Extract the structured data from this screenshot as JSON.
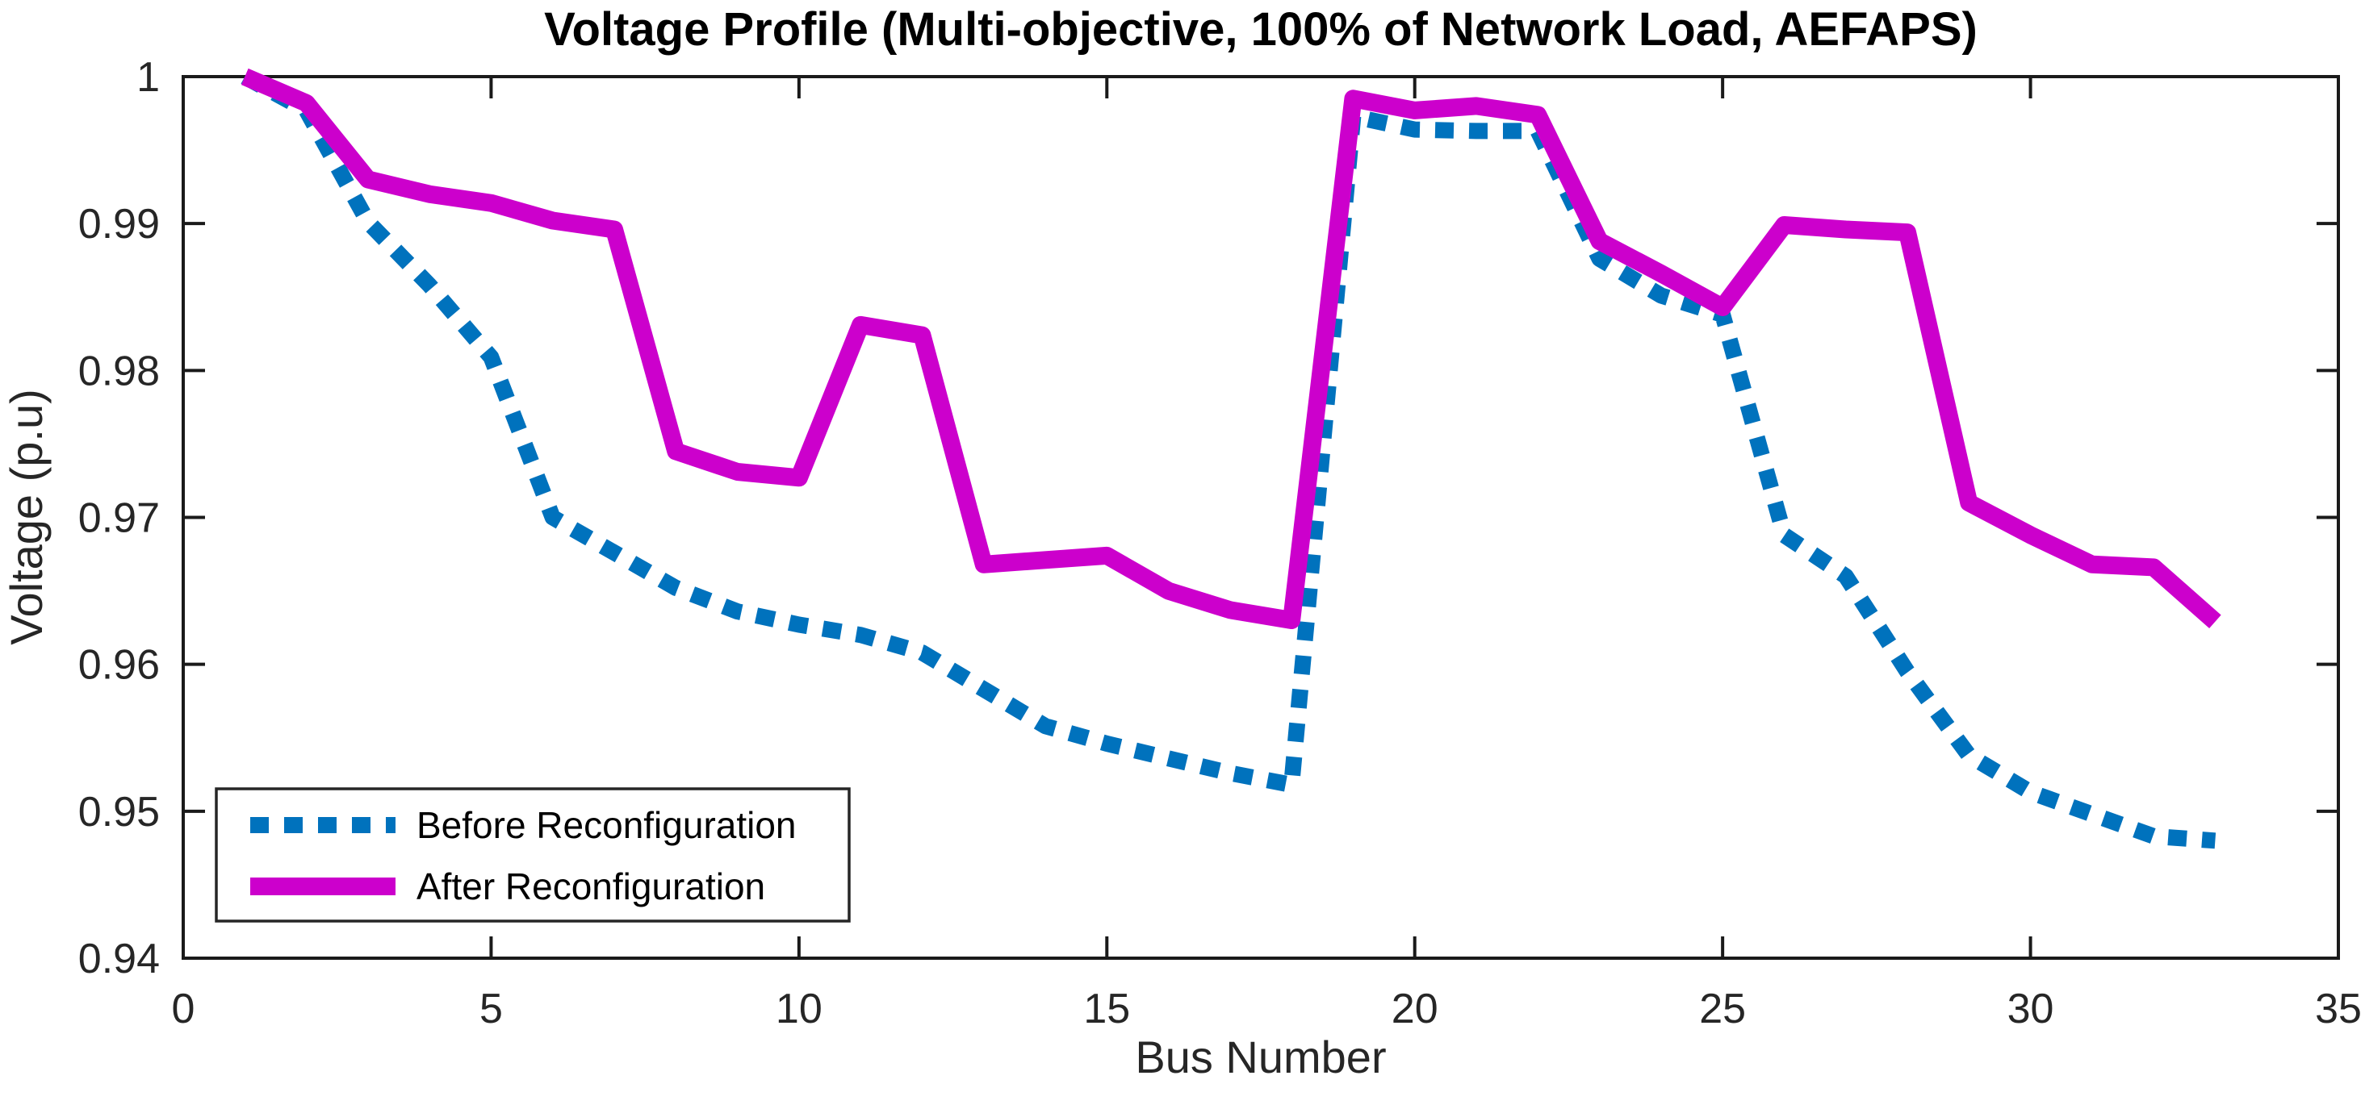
{
  "chart_data": {
    "type": "line",
    "title": "Voltage Profile (Multi-objective, 100% of Network Load, AEFAPS)",
    "xlabel": "Bus Number",
    "ylabel": "Voltage (p.u)",
    "xlim": [
      0,
      35
    ],
    "ylim": [
      0.94,
      1.0
    ],
    "xticks": [
      0,
      5,
      10,
      15,
      20,
      25,
      30,
      35
    ],
    "xtick_labels": [
      "0",
      "5",
      "10",
      "15",
      "20",
      "25",
      "30",
      "35"
    ],
    "yticks": [
      0.94,
      0.95,
      0.96,
      0.97,
      0.98,
      0.99,
      1.0
    ],
    "ytick_labels": [
      "0.94",
      "0.95",
      "0.96",
      "0.97",
      "0.98",
      "0.99",
      "1"
    ],
    "grid": "off",
    "legend_position": "lower-left",
    "x": [
      1,
      2,
      3,
      4,
      5,
      6,
      7,
      8,
      9,
      10,
      11,
      12,
      13,
      14,
      15,
      16,
      17,
      18,
      19,
      20,
      21,
      22,
      23,
      24,
      25,
      26,
      27,
      28,
      29,
      30,
      31,
      32,
      33
    ],
    "series": [
      {
        "name": "Before Reconfiguration",
        "color": "#0072BD",
        "style": "dotted",
        "values": [
          1.0,
          0.9977,
          0.9901,
          0.9858,
          0.9809,
          0.97,
          0.9676,
          0.9652,
          0.9636,
          0.9627,
          0.962,
          0.9608,
          0.9583,
          0.9558,
          0.9546,
          0.9536,
          0.9526,
          0.9518,
          0.9973,
          0.9964,
          0.9963,
          0.9963,
          0.9876,
          0.9851,
          0.9838,
          0.9688,
          0.966,
          0.9595,
          0.9538,
          0.9513,
          0.9498,
          0.9483,
          0.948
        ]
      },
      {
        "name": "After Reconfiguration",
        "color": "#CC00CC",
        "style": "solid",
        "values": [
          1.0,
          0.9982,
          0.993,
          0.992,
          0.9914,
          0.9902,
          0.9896,
          0.9745,
          0.9731,
          0.9727,
          0.9831,
          0.9824,
          0.9668,
          0.9671,
          0.9674,
          0.965,
          0.9637,
          0.963,
          0.9985,
          0.9977,
          0.998,
          0.9974,
          0.9888,
          0.9866,
          0.9843,
          0.9899,
          0.9896,
          0.9894,
          0.971,
          0.9688,
          0.9668,
          0.9666,
          0.9629
        ]
      }
    ],
    "axis_color": "#1a1a1a"
  }
}
